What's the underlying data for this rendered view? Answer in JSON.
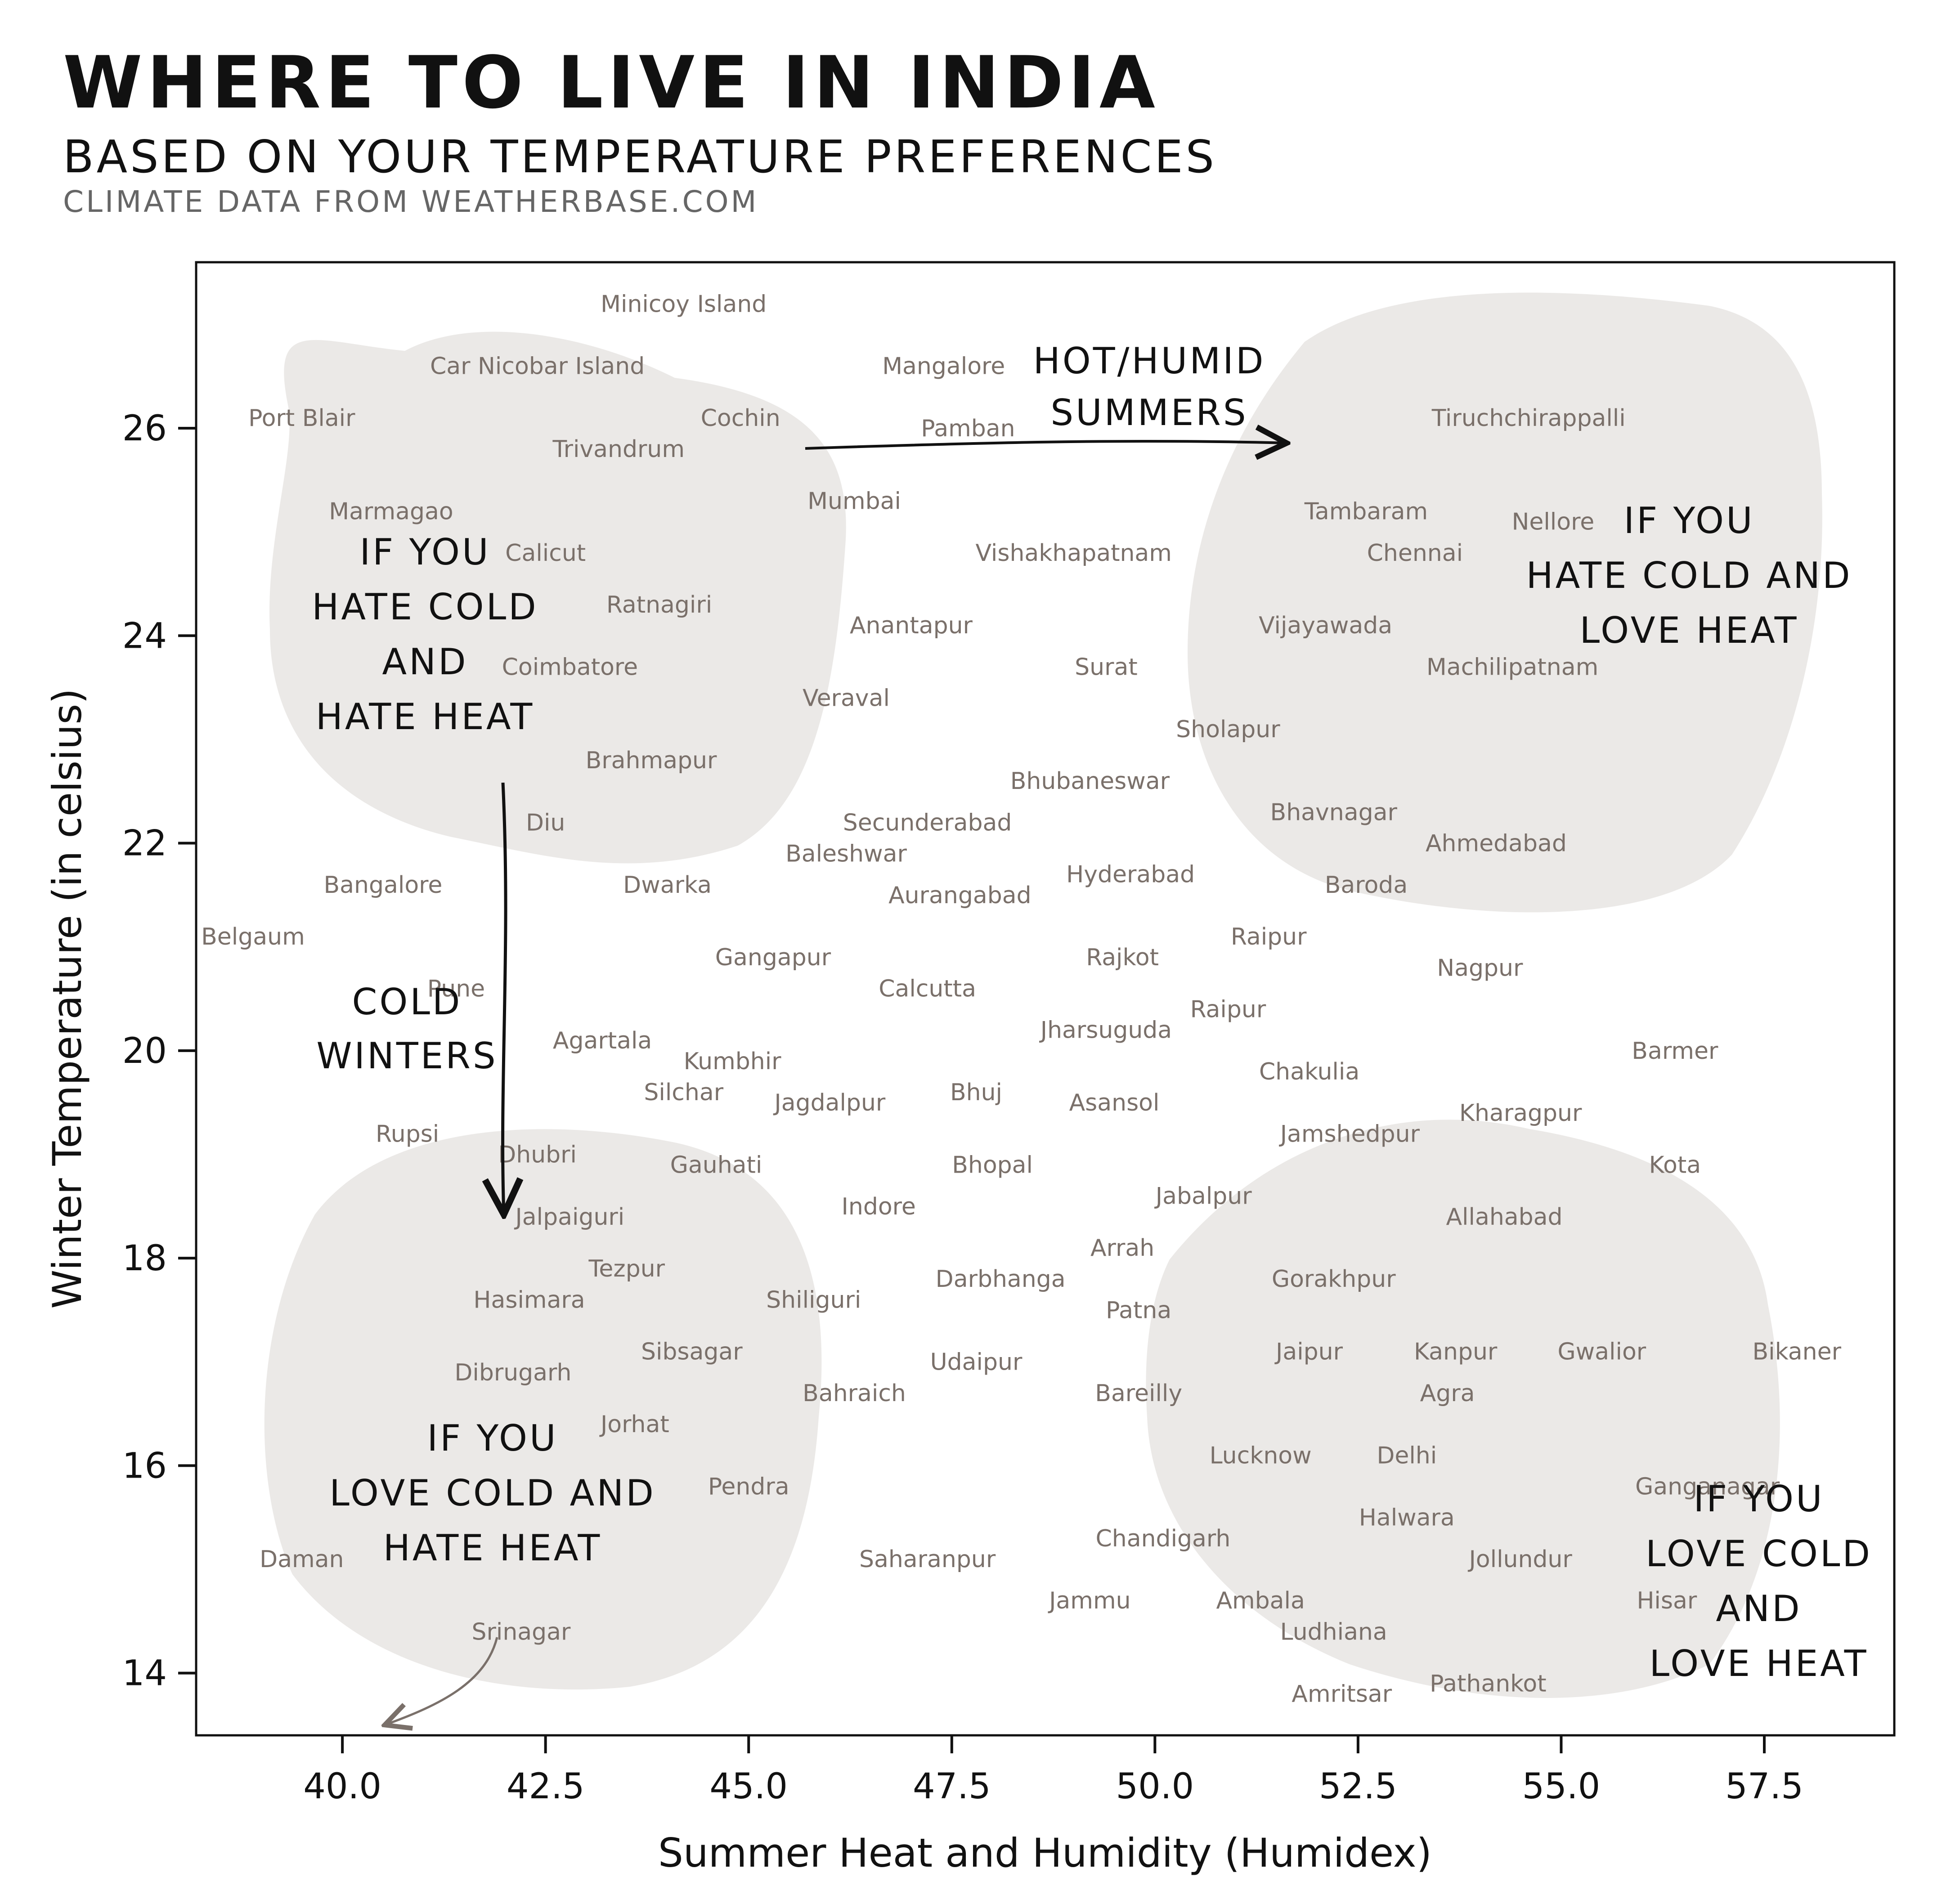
{
  "title": "WHERE TO LIVE IN INDIA",
  "subtitle": "BASED ON YOUR TEMPERATURE PREFERENCES",
  "source": "CLIMATE DATA FROM WEATHERBASE.COM",
  "chart_data": {
    "type": "scatter",
    "xlabel": "Summer Heat and Humidity (Humidex)",
    "ylabel": "Winter Temperature (in celsius)",
    "xlim": [
      38.2,
      59.1
    ],
    "ylim": [
      13.4,
      27.6
    ],
    "xticks": [
      40.0,
      42.5,
      45.0,
      47.5,
      50.0,
      52.5,
      55.0,
      57.5
    ],
    "yticks": [
      14,
      16,
      18,
      20,
      22,
      24,
      26
    ],
    "grid": false,
    "point_color": "#7a706a",
    "region_color": "#ebe9e7",
    "points": [
      {
        "label": "Minicoy Island",
        "x": 44.2,
        "y": 27.2
      },
      {
        "label": "Car Nicobar Island",
        "x": 42.4,
        "y": 26.6
      },
      {
        "label": "Mangalore",
        "x": 47.4,
        "y": 26.6
      },
      {
        "label": "Port Blair",
        "x": 39.5,
        "y": 26.1
      },
      {
        "label": "Cochin",
        "x": 44.9,
        "y": 26.1
      },
      {
        "label": "Pamban",
        "x": 47.7,
        "y": 26.0
      },
      {
        "label": "Tiruchchirappalli",
        "x": 54.6,
        "y": 26.1
      },
      {
        "label": "Trivandrum",
        "x": 43.4,
        "y": 25.8
      },
      {
        "label": "Mumbai",
        "x": 46.3,
        "y": 25.3
      },
      {
        "label": "Marmagao",
        "x": 40.6,
        "y": 25.2
      },
      {
        "label": "Tambaram",
        "x": 52.6,
        "y": 25.2
      },
      {
        "label": "Nellore",
        "x": 54.9,
        "y": 25.1
      },
      {
        "label": "Calicut",
        "x": 42.5,
        "y": 24.8
      },
      {
        "label": "Chennai",
        "x": 53.2,
        "y": 24.8
      },
      {
        "label": "Vishakhapatnam",
        "x": 49.0,
        "y": 24.8
      },
      {
        "label": "Ratnagiri",
        "x": 43.9,
        "y": 24.3
      },
      {
        "label": "Anantapur",
        "x": 47.0,
        "y": 24.1
      },
      {
        "label": "Vijayawada",
        "x": 52.1,
        "y": 24.1
      },
      {
        "label": "Coimbatore",
        "x": 42.8,
        "y": 23.7
      },
      {
        "label": "Machilipatnam",
        "x": 54.4,
        "y": 23.7
      },
      {
        "label": "Surat",
        "x": 49.4,
        "y": 23.7
      },
      {
        "label": "Veraval",
        "x": 46.2,
        "y": 23.4
      },
      {
        "label": "Sholapur",
        "x": 50.9,
        "y": 23.1
      },
      {
        "label": "Brahmapur",
        "x": 43.8,
        "y": 22.8
      },
      {
        "label": "Bhubaneswar",
        "x": 49.2,
        "y": 22.6
      },
      {
        "label": "Bhavnagar",
        "x": 52.2,
        "y": 22.3
      },
      {
        "label": "Secunderabad",
        "x": 47.2,
        "y": 22.2
      },
      {
        "label": "Diu",
        "x": 42.5,
        "y": 22.2
      },
      {
        "label": "Ahmedabad",
        "x": 54.2,
        "y": 22.0
      },
      {
        "label": "Baleshwar",
        "x": 46.2,
        "y": 21.9
      },
      {
        "label": "Hyderabad",
        "x": 49.7,
        "y": 21.7
      },
      {
        "label": "Bangalore",
        "x": 40.5,
        "y": 21.6
      },
      {
        "label": "Dwarka",
        "x": 44.0,
        "y": 21.6
      },
      {
        "label": "Baroda",
        "x": 52.6,
        "y": 21.6
      },
      {
        "label": "Aurangabad",
        "x": 47.6,
        "y": 21.5
      },
      {
        "label": "Belgaum",
        "x": 38.9,
        "y": 21.1
      },
      {
        "label": "Raipur",
        "x": 51.4,
        "y": 21.1
      },
      {
        "label": "Gangapur",
        "x": 45.3,
        "y": 20.9
      },
      {
        "label": "Rajkot",
        "x": 49.6,
        "y": 20.9
      },
      {
        "label": "Nagpur",
        "x": 54.0,
        "y": 20.8
      },
      {
        "label": "Calcutta",
        "x": 47.2,
        "y": 20.6
      },
      {
        "label": "Pune",
        "x": 41.4,
        "y": 20.6
      },
      {
        "label": "Raipur",
        "x": 50.9,
        "y": 20.4
      },
      {
        "label": "Jharsuguda",
        "x": 49.4,
        "y": 20.2
      },
      {
        "label": "Agartala",
        "x": 43.2,
        "y": 20.1
      },
      {
        "label": "Barmer",
        "x": 56.4,
        "y": 20.0
      },
      {
        "label": "Kumbhir",
        "x": 44.8,
        "y": 19.9
      },
      {
        "label": "Chakulia",
        "x": 51.9,
        "y": 19.8
      },
      {
        "label": "Silchar",
        "x": 44.2,
        "y": 19.6
      },
      {
        "label": "Bhuj",
        "x": 47.8,
        "y": 19.6
      },
      {
        "label": "Jagdalpur",
        "x": 46.0,
        "y": 19.5
      },
      {
        "label": "Asansol",
        "x": 49.5,
        "y": 19.5
      },
      {
        "label": "Kharagpur",
        "x": 54.5,
        "y": 19.4
      },
      {
        "label": "Rupsi",
        "x": 40.8,
        "y": 19.2
      },
      {
        "label": "Jamshedpur",
        "x": 52.4,
        "y": 19.2
      },
      {
        "label": "Dhubri",
        "x": 42.4,
        "y": 19.0
      },
      {
        "label": "Bhopal",
        "x": 48.0,
        "y": 18.9
      },
      {
        "label": "Kota",
        "x": 56.4,
        "y": 18.9
      },
      {
        "label": "Gauhati",
        "x": 44.6,
        "y": 18.9
      },
      {
        "label": "Jabalpur",
        "x": 50.6,
        "y": 18.6
      },
      {
        "label": "Indore",
        "x": 46.6,
        "y": 18.5
      },
      {
        "label": "Jalpaiguri",
        "x": 42.8,
        "y": 18.4
      },
      {
        "label": "Allahabad",
        "x": 54.3,
        "y": 18.4
      },
      {
        "label": "Arrah",
        "x": 49.6,
        "y": 18.1
      },
      {
        "label": "Tezpur",
        "x": 43.5,
        "y": 17.9
      },
      {
        "label": "Darbhanga",
        "x": 48.1,
        "y": 17.8
      },
      {
        "label": "Gorakhpur",
        "x": 52.2,
        "y": 17.8
      },
      {
        "label": "Shiliguri",
        "x": 45.8,
        "y": 17.6
      },
      {
        "label": "Hasimara",
        "x": 42.3,
        "y": 17.6
      },
      {
        "label": "Patna",
        "x": 49.8,
        "y": 17.5
      },
      {
        "label": "Jaipur",
        "x": 51.9,
        "y": 17.1
      },
      {
        "label": "Kanpur",
        "x": 53.7,
        "y": 17.1
      },
      {
        "label": "Gwalior",
        "x": 55.5,
        "y": 17.1
      },
      {
        "label": "Bikaner",
        "x": 57.9,
        "y": 17.1
      },
      {
        "label": "Sibsagar",
        "x": 44.3,
        "y": 17.1
      },
      {
        "label": "Udaipur",
        "x": 47.8,
        "y": 17.0
      },
      {
        "label": "Dibrugarh",
        "x": 42.1,
        "y": 16.9
      },
      {
        "label": "Agra",
        "x": 53.6,
        "y": 16.7
      },
      {
        "label": "Bahraich",
        "x": 46.3,
        "y": 16.7
      },
      {
        "label": "Bareilly",
        "x": 49.8,
        "y": 16.7
      },
      {
        "label": "Jorhat",
        "x": 43.6,
        "y": 16.4
      },
      {
        "label": "Lucknow",
        "x": 51.3,
        "y": 16.1
      },
      {
        "label": "Delhi",
        "x": 53.1,
        "y": 16.1
      },
      {
        "label": "Pendra",
        "x": 45.0,
        "y": 15.8
      },
      {
        "label": "Ganganagar",
        "x": 56.8,
        "y": 15.8
      },
      {
        "label": "Halwara",
        "x": 53.1,
        "y": 15.5
      },
      {
        "label": "Chandigarh",
        "x": 50.1,
        "y": 15.3
      },
      {
        "label": "Daman",
        "x": 39.5,
        "y": 15.1
      },
      {
        "label": "Saharanpur",
        "x": 47.2,
        "y": 15.1
      },
      {
        "label": "Jollundur",
        "x": 54.5,
        "y": 15.1
      },
      {
        "label": "Jammu",
        "x": 49.2,
        "y": 14.7
      },
      {
        "label": "Ambala",
        "x": 51.3,
        "y": 14.7
      },
      {
        "label": "Hisar",
        "x": 56.3,
        "y": 14.7
      },
      {
        "label": "Ludhiana",
        "x": 52.2,
        "y": 14.4
      },
      {
        "label": "Srinagar",
        "x": 42.2,
        "y": 14.4
      },
      {
        "label": "Pathankot",
        "x": 54.1,
        "y": 13.9
      },
      {
        "label": "Amritsar",
        "x": 52.3,
        "y": 13.8
      }
    ],
    "annotations": {
      "top_left": [
        "IF YOU",
        "HATE COLD",
        "AND",
        "HATE HEAT"
      ],
      "top_right": [
        "IF YOU",
        "HATE COLD AND",
        "LOVE HEAT"
      ],
      "bottom_left": [
        "IF YOU",
        "LOVE COLD AND",
        "HATE HEAT"
      ],
      "bottom_right": [
        "IF YOU",
        "LOVE COLD",
        "AND",
        "LOVE HEAT"
      ],
      "hot_humid": [
        "HOT/HUMID",
        "SUMMERS"
      ],
      "cold_winters": [
        "COLD",
        "WINTERS"
      ]
    }
  }
}
